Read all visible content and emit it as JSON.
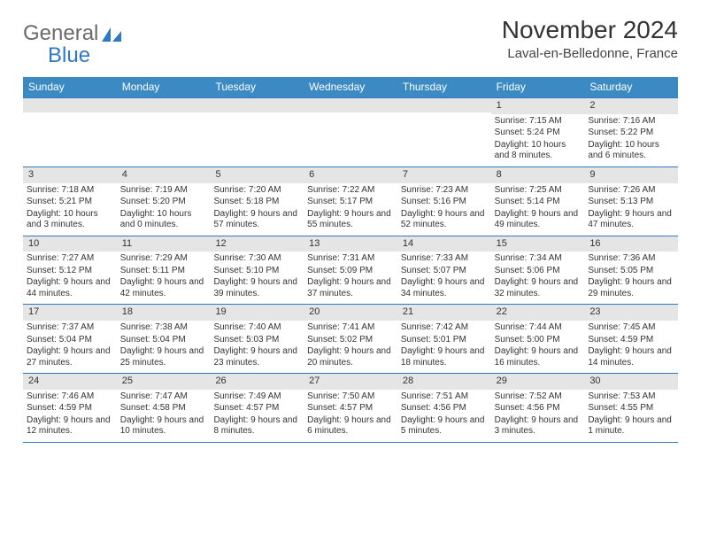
{
  "logo": {
    "text1": "General",
    "text2": "Blue"
  },
  "header": {
    "month_title": "November 2024",
    "location": "Laval-en-Belledonne, France"
  },
  "colors": {
    "header_bar": "#3b8ac4",
    "band": "#e5e5e5",
    "rule": "#2f78c4",
    "text": "#333333",
    "logo_blue": "#2f78c4"
  },
  "weekdays": [
    "Sunday",
    "Monday",
    "Tuesday",
    "Wednesday",
    "Thursday",
    "Friday",
    "Saturday"
  ],
  "weeks": [
    [
      {
        "n": "",
        "sr": "",
        "ss": "",
        "dl": ""
      },
      {
        "n": "",
        "sr": "",
        "ss": "",
        "dl": ""
      },
      {
        "n": "",
        "sr": "",
        "ss": "",
        "dl": ""
      },
      {
        "n": "",
        "sr": "",
        "ss": "",
        "dl": ""
      },
      {
        "n": "",
        "sr": "",
        "ss": "",
        "dl": ""
      },
      {
        "n": "1",
        "sr": "Sunrise: 7:15 AM",
        "ss": "Sunset: 5:24 PM",
        "dl": "Daylight: 10 hours and 8 minutes."
      },
      {
        "n": "2",
        "sr": "Sunrise: 7:16 AM",
        "ss": "Sunset: 5:22 PM",
        "dl": "Daylight: 10 hours and 6 minutes."
      }
    ],
    [
      {
        "n": "3",
        "sr": "Sunrise: 7:18 AM",
        "ss": "Sunset: 5:21 PM",
        "dl": "Daylight: 10 hours and 3 minutes."
      },
      {
        "n": "4",
        "sr": "Sunrise: 7:19 AM",
        "ss": "Sunset: 5:20 PM",
        "dl": "Daylight: 10 hours and 0 minutes."
      },
      {
        "n": "5",
        "sr": "Sunrise: 7:20 AM",
        "ss": "Sunset: 5:18 PM",
        "dl": "Daylight: 9 hours and 57 minutes."
      },
      {
        "n": "6",
        "sr": "Sunrise: 7:22 AM",
        "ss": "Sunset: 5:17 PM",
        "dl": "Daylight: 9 hours and 55 minutes."
      },
      {
        "n": "7",
        "sr": "Sunrise: 7:23 AM",
        "ss": "Sunset: 5:16 PM",
        "dl": "Daylight: 9 hours and 52 minutes."
      },
      {
        "n": "8",
        "sr": "Sunrise: 7:25 AM",
        "ss": "Sunset: 5:14 PM",
        "dl": "Daylight: 9 hours and 49 minutes."
      },
      {
        "n": "9",
        "sr": "Sunrise: 7:26 AM",
        "ss": "Sunset: 5:13 PM",
        "dl": "Daylight: 9 hours and 47 minutes."
      }
    ],
    [
      {
        "n": "10",
        "sr": "Sunrise: 7:27 AM",
        "ss": "Sunset: 5:12 PM",
        "dl": "Daylight: 9 hours and 44 minutes."
      },
      {
        "n": "11",
        "sr": "Sunrise: 7:29 AM",
        "ss": "Sunset: 5:11 PM",
        "dl": "Daylight: 9 hours and 42 minutes."
      },
      {
        "n": "12",
        "sr": "Sunrise: 7:30 AM",
        "ss": "Sunset: 5:10 PM",
        "dl": "Daylight: 9 hours and 39 minutes."
      },
      {
        "n": "13",
        "sr": "Sunrise: 7:31 AM",
        "ss": "Sunset: 5:09 PM",
        "dl": "Daylight: 9 hours and 37 minutes."
      },
      {
        "n": "14",
        "sr": "Sunrise: 7:33 AM",
        "ss": "Sunset: 5:07 PM",
        "dl": "Daylight: 9 hours and 34 minutes."
      },
      {
        "n": "15",
        "sr": "Sunrise: 7:34 AM",
        "ss": "Sunset: 5:06 PM",
        "dl": "Daylight: 9 hours and 32 minutes."
      },
      {
        "n": "16",
        "sr": "Sunrise: 7:36 AM",
        "ss": "Sunset: 5:05 PM",
        "dl": "Daylight: 9 hours and 29 minutes."
      }
    ],
    [
      {
        "n": "17",
        "sr": "Sunrise: 7:37 AM",
        "ss": "Sunset: 5:04 PM",
        "dl": "Daylight: 9 hours and 27 minutes."
      },
      {
        "n": "18",
        "sr": "Sunrise: 7:38 AM",
        "ss": "Sunset: 5:04 PM",
        "dl": "Daylight: 9 hours and 25 minutes."
      },
      {
        "n": "19",
        "sr": "Sunrise: 7:40 AM",
        "ss": "Sunset: 5:03 PM",
        "dl": "Daylight: 9 hours and 23 minutes."
      },
      {
        "n": "20",
        "sr": "Sunrise: 7:41 AM",
        "ss": "Sunset: 5:02 PM",
        "dl": "Daylight: 9 hours and 20 minutes."
      },
      {
        "n": "21",
        "sr": "Sunrise: 7:42 AM",
        "ss": "Sunset: 5:01 PM",
        "dl": "Daylight: 9 hours and 18 minutes."
      },
      {
        "n": "22",
        "sr": "Sunrise: 7:44 AM",
        "ss": "Sunset: 5:00 PM",
        "dl": "Daylight: 9 hours and 16 minutes."
      },
      {
        "n": "23",
        "sr": "Sunrise: 7:45 AM",
        "ss": "Sunset: 4:59 PM",
        "dl": "Daylight: 9 hours and 14 minutes."
      }
    ],
    [
      {
        "n": "24",
        "sr": "Sunrise: 7:46 AM",
        "ss": "Sunset: 4:59 PM",
        "dl": "Daylight: 9 hours and 12 minutes."
      },
      {
        "n": "25",
        "sr": "Sunrise: 7:47 AM",
        "ss": "Sunset: 4:58 PM",
        "dl": "Daylight: 9 hours and 10 minutes."
      },
      {
        "n": "26",
        "sr": "Sunrise: 7:49 AM",
        "ss": "Sunset: 4:57 PM",
        "dl": "Daylight: 9 hours and 8 minutes."
      },
      {
        "n": "27",
        "sr": "Sunrise: 7:50 AM",
        "ss": "Sunset: 4:57 PM",
        "dl": "Daylight: 9 hours and 6 minutes."
      },
      {
        "n": "28",
        "sr": "Sunrise: 7:51 AM",
        "ss": "Sunset: 4:56 PM",
        "dl": "Daylight: 9 hours and 5 minutes."
      },
      {
        "n": "29",
        "sr": "Sunrise: 7:52 AM",
        "ss": "Sunset: 4:56 PM",
        "dl": "Daylight: 9 hours and 3 minutes."
      },
      {
        "n": "30",
        "sr": "Sunrise: 7:53 AM",
        "ss": "Sunset: 4:55 PM",
        "dl": "Daylight: 9 hours and 1 minute."
      }
    ]
  ]
}
